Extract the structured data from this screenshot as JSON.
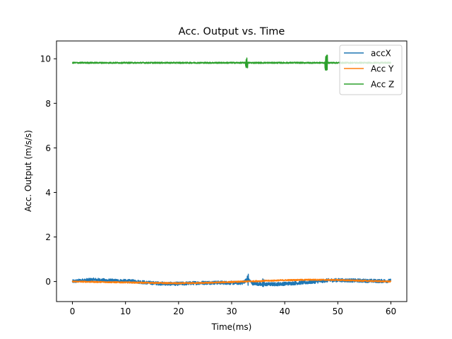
{
  "chart_data": {
    "type": "line",
    "title": "Acc. Output vs. Time",
    "xlabel": "Time(ms)",
    "ylabel": "Acc. Output (m/s/s)",
    "xlim": [
      -3,
      63
    ],
    "ylim": [
      -0.9,
      10.8
    ],
    "xticks": [
      0,
      10,
      20,
      30,
      40,
      50,
      60
    ],
    "yticks": [
      0,
      2,
      4,
      6,
      8,
      10
    ],
    "grid": false,
    "legend_position": "top-right",
    "series": [
      {
        "name": "accX",
        "color": "#1f77b4",
        "x": [
          0,
          2,
          4,
          6,
          8,
          10,
          12,
          14,
          16,
          18,
          20,
          22,
          24,
          26,
          28,
          30,
          32,
          33,
          34,
          36,
          38,
          40,
          42,
          44,
          46,
          48,
          50,
          52,
          54,
          56,
          58,
          60
        ],
        "y": [
          0.0,
          0.05,
          0.08,
          0.05,
          0.03,
          0.02,
          0.0,
          -0.05,
          -0.08,
          -0.1,
          -0.1,
          -0.08,
          -0.06,
          -0.05,
          -0.05,
          -0.06,
          -0.06,
          0.1,
          -0.08,
          -0.12,
          -0.12,
          -0.1,
          -0.07,
          -0.04,
          0.0,
          0.05,
          0.06,
          0.05,
          0.04,
          0.03,
          0.02,
          0.03
        ],
        "noise": 0.08
      },
      {
        "name": "Acc Y",
        "color": "#ff7f0e",
        "x": [
          0,
          5,
          10,
          15,
          20,
          25,
          30,
          35,
          40,
          45,
          50,
          55,
          60
        ],
        "y": [
          0.0,
          -0.02,
          -0.04,
          -0.06,
          -0.08,
          -0.06,
          -0.02,
          0.02,
          0.06,
          0.08,
          0.07,
          0.03,
          0.0
        ],
        "noise": 0.03
      },
      {
        "name": "Acc Z",
        "color": "#2ca02c",
        "x": [
          0,
          10,
          20,
          30,
          32.5,
          33,
          40,
          47.5,
          48,
          55,
          60
        ],
        "y": [
          9.82,
          9.82,
          9.82,
          9.82,
          9.82,
          9.82,
          9.82,
          9.82,
          9.82,
          9.82,
          9.82
        ],
        "noise": 0.03
      }
    ]
  }
}
